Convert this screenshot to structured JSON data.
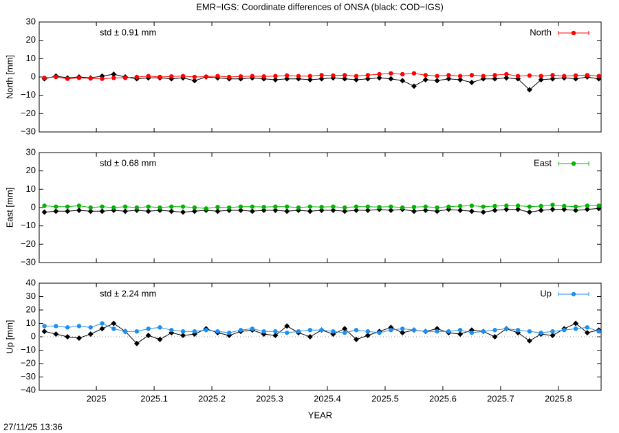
{
  "title": "EMR−IGS: Coordinate differences of ONSA (black: COD−IGS)",
  "timestamp": "27/11/25 13:36",
  "chart_data": [
    {
      "type": "line",
      "ylabel": "North [mm]",
      "annotation": "std ± 0.91 mm",
      "legend": "upper right",
      "xlim": [
        2024.901,
        2025.874
      ],
      "xticks": [
        2025,
        2025.1,
        2025.2,
        2025.3,
        2025.4,
        2025.5,
        2025.6,
        2025.7,
        2025.8
      ],
      "ylim": [
        -30,
        30
      ],
      "yticks": [
        30,
        20,
        10,
        0,
        {
          "value": -10,
          "label": "−10"
        },
        {
          "value": -20,
          "label": "−20"
        },
        {
          "value": -30,
          "label": "−30"
        }
      ],
      "x": [
        2024.91,
        2024.93,
        2024.95,
        2024.97,
        2024.99,
        2025.01,
        2025.03,
        2025.05,
        2025.07,
        2025.09,
        2025.11,
        2025.13,
        2025.15,
        2025.17,
        2025.19,
        2025.21,
        2025.23,
        2025.25,
        2025.27,
        2025.29,
        2025.31,
        2025.33,
        2025.35,
        2025.37,
        2025.39,
        2025.41,
        2025.43,
        2025.45,
        2025.47,
        2025.49,
        2025.51,
        2025.53,
        2025.55,
        2025.57,
        2025.59,
        2025.61,
        2025.63,
        2025.65,
        2025.67,
        2025.69,
        2025.71,
        2025.73,
        2025.75,
        2025.77,
        2025.79,
        2025.81,
        2025.83,
        2025.85,
        2025.87
      ],
      "series": [
        {
          "color": "#000000",
          "marker": "diamond",
          "values": [
            -1,
            0.5,
            -0.5,
            0,
            -0.5,
            0.5,
            1.5,
            0,
            -1,
            -0.5,
            -0.5,
            -1,
            -0.5,
            -2,
            0,
            -0.5,
            -1,
            -1,
            -0.5,
            -1,
            -1.5,
            -1,
            -1,
            -1.5,
            -1,
            -0.5,
            -1,
            -1.5,
            -1,
            -0.5,
            -1,
            -2,
            -5,
            -1.5,
            -2,
            -1,
            -1.5,
            -3,
            -1,
            -1,
            -0.5,
            -1,
            -7,
            -1.5,
            -1,
            -0.5,
            -1,
            0,
            -1
          ]
        },
        {
          "name": "North",
          "color": "#ff0000",
          "marker": "circle",
          "values": [
            -0.5,
            0,
            -1,
            -0.5,
            -0.8,
            -1,
            -0.5,
            -0.5,
            0,
            0.5,
            0,
            0.3,
            0.5,
            0,
            0.2,
            0.5,
            0,
            0.3,
            0.5,
            0.3,
            0.5,
            0.8,
            0.5,
            0.5,
            1,
            0.8,
            1,
            0.5,
            1,
            1.5,
            2,
            1.5,
            2,
            1,
            0.5,
            1,
            0.5,
            1,
            0.5,
            1,
            1.5,
            0.5,
            0.8,
            0.5,
            1,
            0.5,
            0.8,
            1,
            0.5
          ]
        }
      ]
    },
    {
      "type": "line",
      "ylabel": "East [mm]",
      "annotation": "std ± 0.68 mm",
      "legend": "upper right",
      "xlim": [
        2024.901,
        2025.874
      ],
      "xticks": [
        2025,
        2025.1,
        2025.2,
        2025.3,
        2025.4,
        2025.5,
        2025.6,
        2025.7,
        2025.8
      ],
      "ylim": [
        -30,
        30
      ],
      "yticks": [
        30,
        20,
        10,
        0,
        {
          "value": -10,
          "label": "−10"
        },
        {
          "value": -20,
          "label": "−20"
        },
        {
          "value": -30,
          "label": "−30"
        }
      ],
      "x": [
        2024.91,
        2024.93,
        2024.95,
        2024.97,
        2024.99,
        2025.01,
        2025.03,
        2025.05,
        2025.07,
        2025.09,
        2025.11,
        2025.13,
        2025.15,
        2025.17,
        2025.19,
        2025.21,
        2025.23,
        2025.25,
        2025.27,
        2025.29,
        2025.31,
        2025.33,
        2025.35,
        2025.37,
        2025.39,
        2025.41,
        2025.43,
        2025.45,
        2025.47,
        2025.49,
        2025.51,
        2025.53,
        2025.55,
        2025.57,
        2025.59,
        2025.61,
        2025.63,
        2025.65,
        2025.67,
        2025.69,
        2025.71,
        2025.73,
        2025.75,
        2025.77,
        2025.79,
        2025.81,
        2025.83,
        2025.85,
        2025.87
      ],
      "series": [
        {
          "color": "#000000",
          "marker": "diamond",
          "values": [
            -2.5,
            -2,
            -2,
            -1.5,
            -2,
            -2,
            -1.5,
            -2,
            -1.5,
            -2,
            -1.5,
            -2,
            -2.5,
            -2,
            -1.5,
            -2,
            -1.5,
            -1.5,
            -2,
            -1.5,
            -1.5,
            -2,
            -1.5,
            -2,
            -1.5,
            -1.5,
            -2,
            -1.5,
            -1.5,
            -1,
            -1.5,
            -1,
            -2,
            -1.5,
            -2,
            -1,
            -1.5,
            -2,
            -2.5,
            -1.5,
            -1,
            -1,
            -2.5,
            -1.5,
            -1,
            -1,
            -1.5,
            -1,
            -0.5
          ]
        },
        {
          "name": "East",
          "color": "#00b400",
          "marker": "circle",
          "values": [
            1,
            0.5,
            0.5,
            1,
            0,
            0.5,
            0,
            0.5,
            0,
            0.5,
            0,
            0.5,
            0.5,
            0,
            -0.5,
            0.3,
            0,
            0.5,
            0.5,
            0.3,
            0.5,
            0.5,
            0,
            0.5,
            0.3,
            0.5,
            0,
            0.5,
            0.5,
            0.3,
            0.5,
            0,
            0.3,
            0.5,
            0,
            0.5,
            0.8,
            1,
            0.5,
            0.8,
            1,
            1,
            0.5,
            0.8,
            1.5,
            0.8,
            0.5,
            1,
            1
          ]
        }
      ]
    },
    {
      "type": "line",
      "ylabel": "Up [mm]",
      "xlabel": "YEAR",
      "annotation": "std ± 2.24 mm",
      "legend": "upper right",
      "zero_line": true,
      "xlim": [
        2024.901,
        2025.874
      ],
      "xticks": [
        2025,
        2025.1,
        2025.2,
        2025.3,
        2025.4,
        2025.5,
        2025.6,
        2025.7,
        2025.8
      ],
      "ylim": [
        -40,
        40
      ],
      "yticks": [
        40,
        30,
        20,
        10,
        0,
        {
          "value": -10,
          "label": "−10"
        },
        {
          "value": -20,
          "label": "−20"
        },
        {
          "value": -30,
          "label": "−30"
        },
        {
          "value": -40,
          "label": "−40"
        }
      ],
      "x": [
        2024.91,
        2024.93,
        2024.95,
        2024.97,
        2024.99,
        2025.01,
        2025.03,
        2025.05,
        2025.07,
        2025.09,
        2025.11,
        2025.13,
        2025.15,
        2025.17,
        2025.19,
        2025.21,
        2025.23,
        2025.25,
        2025.27,
        2025.29,
        2025.31,
        2025.33,
        2025.35,
        2025.37,
        2025.39,
        2025.41,
        2025.43,
        2025.45,
        2025.47,
        2025.49,
        2025.51,
        2025.53,
        2025.55,
        2025.57,
        2025.59,
        2025.61,
        2025.63,
        2025.65,
        2025.67,
        2025.69,
        2025.71,
        2025.73,
        2025.75,
        2025.77,
        2025.79,
        2025.81,
        2025.83,
        2025.85,
        2025.87
      ],
      "series": [
        {
          "color": "#000000",
          "marker": "diamond",
          "values": [
            4,
            2,
            0,
            -1,
            2,
            6,
            10,
            4,
            -5,
            1,
            -2,
            3,
            1,
            2,
            6,
            3,
            1,
            4,
            5,
            2,
            1,
            8,
            3,
            0,
            5,
            2,
            6,
            -2,
            1,
            4,
            7,
            3,
            5,
            4,
            6,
            3,
            2,
            5,
            4,
            0,
            6,
            3,
            -3,
            2,
            1,
            6,
            10,
            3,
            5
          ]
        },
        {
          "name": "Up",
          "color": "#1e8ff0",
          "marker": "circle",
          "values": [
            8,
            8,
            7,
            8,
            7,
            10,
            6,
            4,
            4,
            6,
            7,
            5,
            4,
            4,
            5,
            4,
            3,
            5,
            6,
            4,
            4,
            3,
            4,
            5,
            5,
            4,
            3,
            5,
            4,
            3,
            5,
            6,
            5,
            4,
            4,
            4,
            5,
            3,
            4,
            5,
            6,
            5,
            4,
            3,
            4,
            5,
            6,
            7,
            4
          ]
        }
      ]
    }
  ]
}
